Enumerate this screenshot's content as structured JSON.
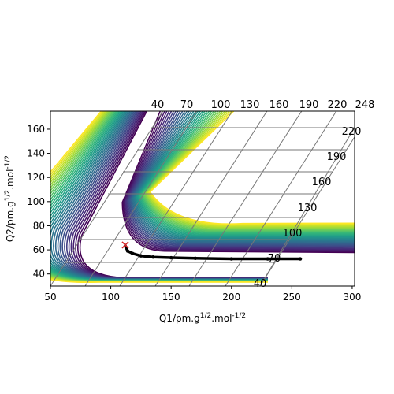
{
  "chart_data": {
    "type": "contour",
    "xlabel": "Q1/pm.g^{1/2}.mol^{-1/2}",
    "ylabel": "Q2/pm.g^{1/2}.mol^{-1/2}",
    "xlim": [
      50,
      302
    ],
    "ylim": [
      30,
      175
    ],
    "xticks": [
      50,
      100,
      150,
      200,
      250,
      300
    ],
    "yticks": [
      40,
      60,
      80,
      100,
      120,
      140,
      160
    ],
    "grid": "skewed",
    "colormap": "viridis",
    "contour_levels": [
      {
        "value": 40,
        "position": "top"
      },
      {
        "value": 70,
        "position": "top"
      },
      {
        "value": 100,
        "position": "top"
      },
      {
        "value": 130,
        "position": "top"
      },
      {
        "value": 160,
        "position": "top"
      },
      {
        "value": 190,
        "position": "top"
      },
      {
        "value": 220,
        "position": "top"
      },
      {
        "value": 248,
        "position": "top"
      },
      {
        "value": 220,
        "position": "right"
      },
      {
        "value": 190,
        "position": "right"
      },
      {
        "value": 160,
        "position": "right"
      },
      {
        "value": 130,
        "position": "right"
      },
      {
        "value": 100,
        "position": "right"
      },
      {
        "value": 70,
        "position": "right"
      },
      {
        "value": 40,
        "position": "right"
      }
    ],
    "trajectory": {
      "color": "#000000",
      "x": [
        112,
        114,
        118,
        125,
        135,
        150,
        170,
        200,
        230,
        257
      ],
      "y": [
        63,
        59,
        57,
        55,
        54,
        53.5,
        53,
        52.5,
        52.5,
        52.5
      ]
    },
    "start_marker": {
      "x": 112,
      "y": 64,
      "symbol": "x",
      "color": "#d62728"
    }
  }
}
